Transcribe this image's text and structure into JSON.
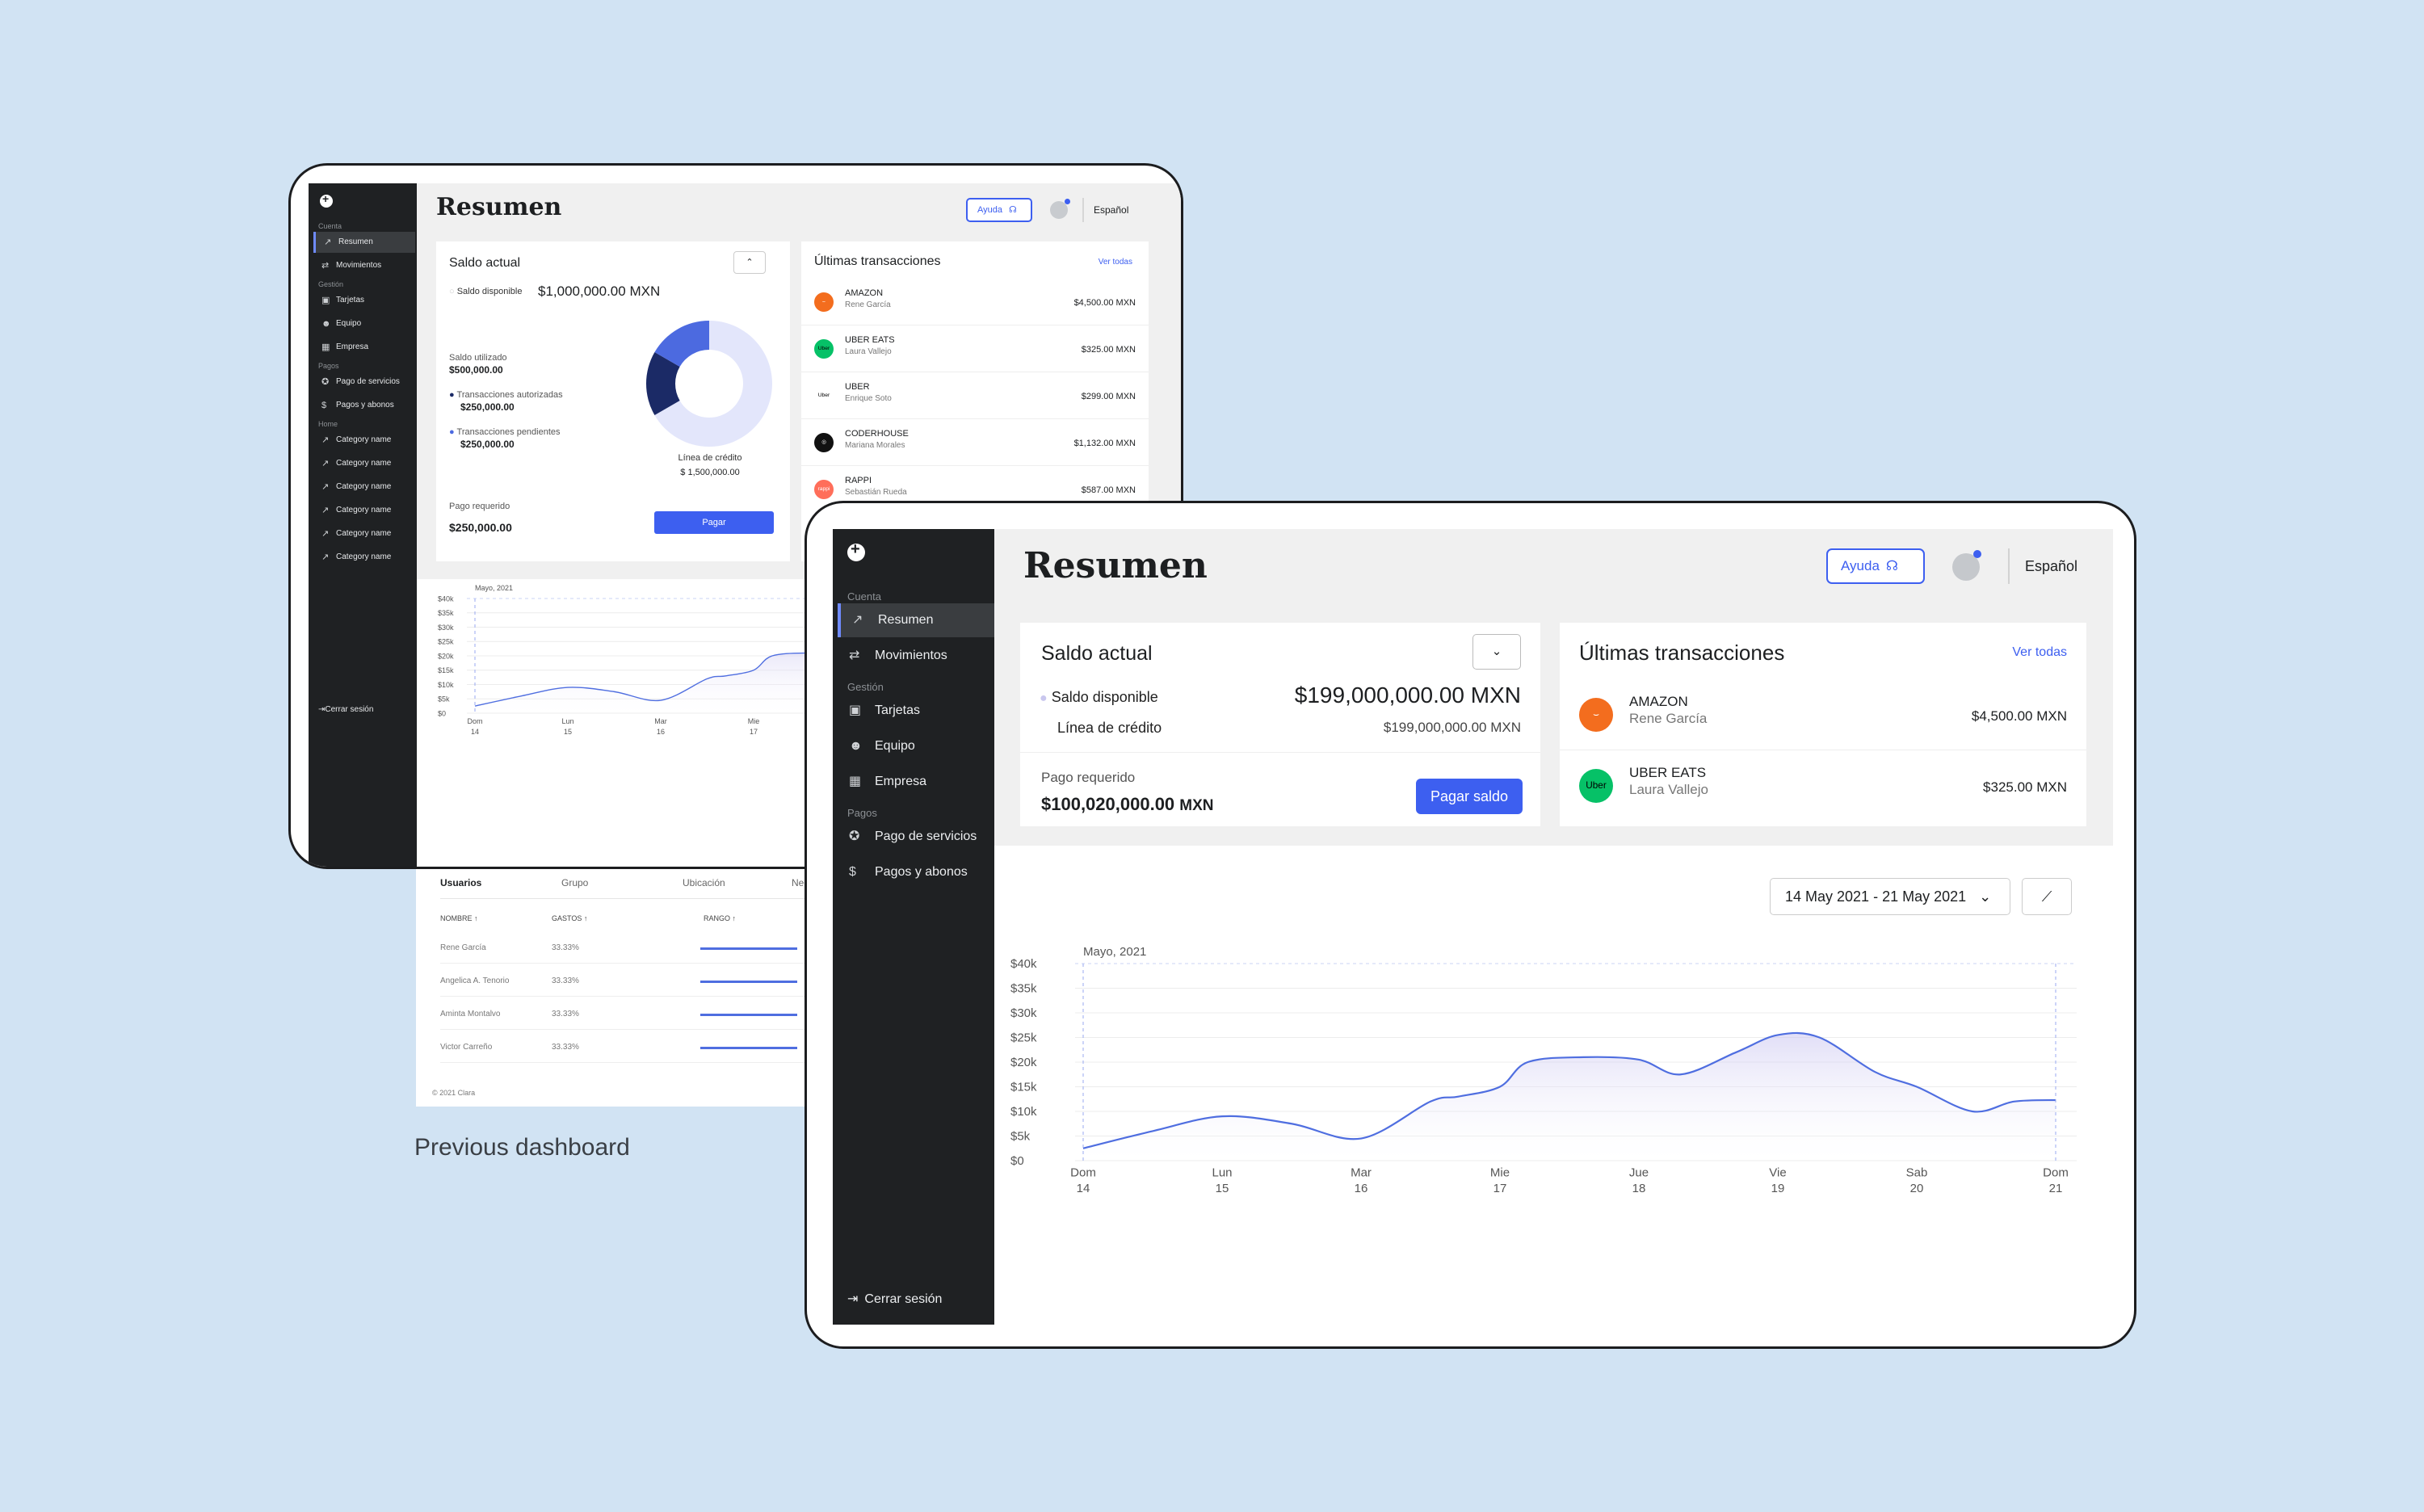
{
  "colors": {
    "background": "#d1e3f3",
    "sidebar": "#1f2123",
    "accent": "#3d5ff0",
    "chart_line": "#4f6ee0",
    "donut_light": "#e3e6fb",
    "donut_mid": "#4c6ae0",
    "donut_dark": "#1b2a66"
  },
  "caption": "Previous dashboard",
  "old": {
    "sidebar": {
      "sections": [
        "Cuenta",
        "Gestión",
        "Pagos",
        "Home"
      ],
      "items": [
        {
          "label": "Resumen",
          "icon": "trend-icon"
        },
        {
          "label": "Movimientos",
          "icon": "swap-icon"
        },
        {
          "label": "Tarjetas",
          "icon": "cards-icon"
        },
        {
          "label": "Equipo",
          "icon": "team-icon"
        },
        {
          "label": "Empresa",
          "icon": "building-icon"
        },
        {
          "label": "Pago de servicios",
          "icon": "bulb-icon"
        },
        {
          "label": "Pagos y abonos",
          "icon": "dollar-icon"
        },
        {
          "label": "Category name",
          "icon": "trend-icon"
        },
        {
          "label": "Category name",
          "icon": "trend-icon"
        },
        {
          "label": "Category name",
          "icon": "trend-icon"
        },
        {
          "label": "Category name",
          "icon": "trend-icon"
        },
        {
          "label": "Category name",
          "icon": "trend-icon"
        },
        {
          "label": "Category name",
          "icon": "trend-icon"
        }
      ],
      "logout": "Cerrar sesión"
    },
    "header": {
      "title": "Resumen",
      "help": "Ayuda",
      "language": "Español"
    },
    "balance": {
      "title": "Saldo actual",
      "available_label": "Saldo disponible",
      "available_value": "$1,000,000.00 MXN",
      "used_label": "Saldo utilizado",
      "used_value": "$500,000.00",
      "authorized_label": "Transacciones autorizadas",
      "authorized_value": "$250,000.00",
      "pending_label": "Transacciones pendientes",
      "pending_value": "$250,000.00",
      "credit_label": "Línea de crédito",
      "credit_value": "$ 1,500,000.00",
      "required_label": "Pago requerido",
      "required_value": "$250,000.00",
      "pay_button": "Pagar",
      "donut": {
        "available": 1000000,
        "authorized": 250000,
        "pending": 250000
      }
    },
    "transactions": {
      "title": "Últimas transacciones",
      "see_all": "Ver todas",
      "rows": [
        {
          "merchant": "AMAZON",
          "person": "Rene García",
          "amount": "$4,500.00 MXN",
          "logo": "amazon-logo"
        },
        {
          "merchant": "UBER EATS",
          "person": "Laura Vallejo",
          "amount": "$325.00 MXN",
          "logo": "ubereats-logo"
        },
        {
          "merchant": "UBER",
          "person": "Enrique Soto",
          "amount": "$299.00 MXN",
          "logo": "uber-logo"
        },
        {
          "merchant": "CODERHOUSE",
          "person": "Mariana Morales",
          "amount": "$1,132.00 MXN",
          "logo": "coderhouse-logo"
        },
        {
          "merchant": "RAPPI",
          "person": "Sebastián Rueda",
          "amount": "$587.00 MXN",
          "logo": "rappi-logo"
        }
      ]
    },
    "chart": {
      "month_label": "Mayo, 2021",
      "y_ticks": [
        "$40k",
        "$35k",
        "$30k",
        "$25k",
        "$20k",
        "$15k",
        "$10k",
        "$5k",
        "$0"
      ],
      "x_ticks": [
        [
          "Dom",
          "14"
        ],
        [
          "Lun",
          "15"
        ],
        [
          "Mar",
          "16"
        ],
        [
          "Mie",
          "17"
        ]
      ]
    },
    "users": {
      "tabs": [
        "Usuarios",
        "Grupo",
        "Ubicación",
        "Neg"
      ],
      "columns": [
        "NOMBRE",
        "GASTOS",
        "RANGO"
      ],
      "rows": [
        {
          "name": "Rene García",
          "spend": "33.33%"
        },
        {
          "name": "Angelica A. Tenorio",
          "spend": "33.33%"
        },
        {
          "name": "Aminta Montalvo",
          "spend": "33.33%"
        },
        {
          "name": "Victor Carreño",
          "spend": "33.33%"
        }
      ],
      "footer": "© 2021 Clara"
    }
  },
  "new": {
    "sidebar": {
      "sections": [
        "Cuenta",
        "Gestión",
        "Pagos"
      ],
      "items": [
        {
          "label": "Resumen",
          "icon": "trend-icon"
        },
        {
          "label": "Movimientos",
          "icon": "swap-icon"
        },
        {
          "label": "Tarjetas",
          "icon": "cards-icon"
        },
        {
          "label": "Equipo",
          "icon": "team-icon"
        },
        {
          "label": "Empresa",
          "icon": "building-icon"
        },
        {
          "label": "Pago de servicios",
          "icon": "bulb-icon"
        },
        {
          "label": "Pagos y abonos",
          "icon": "dollar-icon"
        }
      ],
      "logout": "Cerrar sesión"
    },
    "header": {
      "title": "Resumen",
      "help": "Ayuda",
      "language": "Español"
    },
    "balance": {
      "title": "Saldo actual",
      "available_label": "Saldo disponible",
      "available_value": "$199,000,000.00 MXN",
      "credit_label": "Línea de crédito",
      "credit_value": "$199,000,000.00 MXN",
      "required_label": "Pago requerido",
      "required_value": "$100,020,000.00",
      "required_currency": "MXN",
      "pay_button": "Pagar saldo"
    },
    "transactions": {
      "title": "Últimas transacciones",
      "see_all": "Ver todas",
      "rows": [
        {
          "merchant": "AMAZON",
          "person": "Rene García",
          "amount": "$4,500.00 MXN",
          "logo": "amazon-logo"
        },
        {
          "merchant": "UBER EATS",
          "person": "Laura Vallejo",
          "amount": "$325.00 MXN",
          "logo": "ubereats-logo"
        }
      ]
    },
    "date_range": "14 May 2021 - 21 May 2021"
  },
  "chart_data": [
    {
      "type": "area",
      "title": "",
      "annotation": "Mayo, 2021",
      "ylim": [
        0,
        40000
      ],
      "y_ticks": [
        "$40k",
        "$35k",
        "$30k",
        "$25k",
        "$20k",
        "$15k",
        "$10k",
        "$5k",
        "$0"
      ],
      "x": [
        [
          "Dom",
          "14"
        ],
        [
          "Lun",
          "15"
        ],
        [
          "Mar",
          "16"
        ],
        [
          "Mie",
          "17"
        ],
        [
          "Jue",
          "18"
        ],
        [
          "Vie",
          "19"
        ],
        [
          "Sab",
          "20"
        ],
        [
          "Dom",
          "21"
        ]
      ],
      "series": [
        {
          "points": [
            [
              0,
              2500
            ],
            [
              0.5,
              6000
            ],
            [
              1,
              9000
            ],
            [
              1.5,
              7500
            ],
            [
              2,
              4500
            ],
            [
              2.5,
              12000
            ],
            [
              2.7,
              13000
            ],
            [
              3,
              15000
            ],
            [
              3.2,
              20000
            ],
            [
              3.6,
              21000
            ],
            [
              4,
              20500
            ],
            [
              4.3,
              17500
            ],
            [
              4.7,
              22000
            ],
            [
              5,
              25500
            ],
            [
              5.3,
              25000
            ],
            [
              5.7,
              18000
            ],
            [
              6,
              15000
            ],
            [
              6.4,
              10000
            ],
            [
              6.7,
              12000
            ],
            [
              7,
              12300
            ]
          ]
        }
      ]
    }
  ]
}
